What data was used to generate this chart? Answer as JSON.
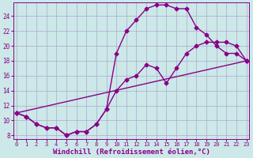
{
  "background_color": "#cce8e8",
  "grid_color": "#aaaacc",
  "line_color": "#880088",
  "marker": "D",
  "marker_size": 2.5,
  "line_width": 1.0,
  "xlabel": "Windchill (Refroidissement éolien,°C)",
  "xlabel_fontsize": 6.5,
  "ylabel_ticks": [
    8,
    10,
    12,
    14,
    16,
    18,
    20,
    22,
    24
  ],
  "xticks": [
    0,
    1,
    2,
    3,
    4,
    5,
    6,
    7,
    8,
    9,
    10,
    11,
    12,
    13,
    14,
    15,
    16,
    17,
    18,
    19,
    20,
    21,
    22,
    23
  ],
  "xlim": [
    -0.3,
    23.3
  ],
  "ylim": [
    7.5,
    25.8
  ],
  "series1_x": [
    0,
    1,
    2,
    3,
    4,
    5,
    6,
    7,
    8,
    9,
    10,
    11,
    12,
    13,
    14,
    15,
    16,
    17,
    18,
    19,
    20,
    21,
    22,
    23
  ],
  "series1_y": [
    11.0,
    10.5,
    9.5,
    9.0,
    9.0,
    8.0,
    8.5,
    8.5,
    9.5,
    11.5,
    19.0,
    22.0,
    23.5,
    25.0,
    25.5,
    25.5,
    25.0,
    25.0,
    22.5,
    21.5,
    20.0,
    19.0,
    19.0,
    18.0
  ],
  "series2_x": [
    0,
    1,
    2,
    3,
    4,
    5,
    6,
    7,
    8,
    9,
    10,
    11,
    12,
    13,
    14,
    15,
    16,
    17,
    18,
    19,
    20,
    21,
    22,
    23
  ],
  "series2_y": [
    11.0,
    10.5,
    9.5,
    9.0,
    9.0,
    8.0,
    8.5,
    8.5,
    9.5,
    11.5,
    14.0,
    15.5,
    16.0,
    17.5,
    17.0,
    15.0,
    17.0,
    19.0,
    20.0,
    20.5,
    20.5,
    20.5,
    20.0,
    18.0
  ],
  "series3_x": [
    0,
    23
  ],
  "series3_y": [
    11.0,
    18.0
  ]
}
